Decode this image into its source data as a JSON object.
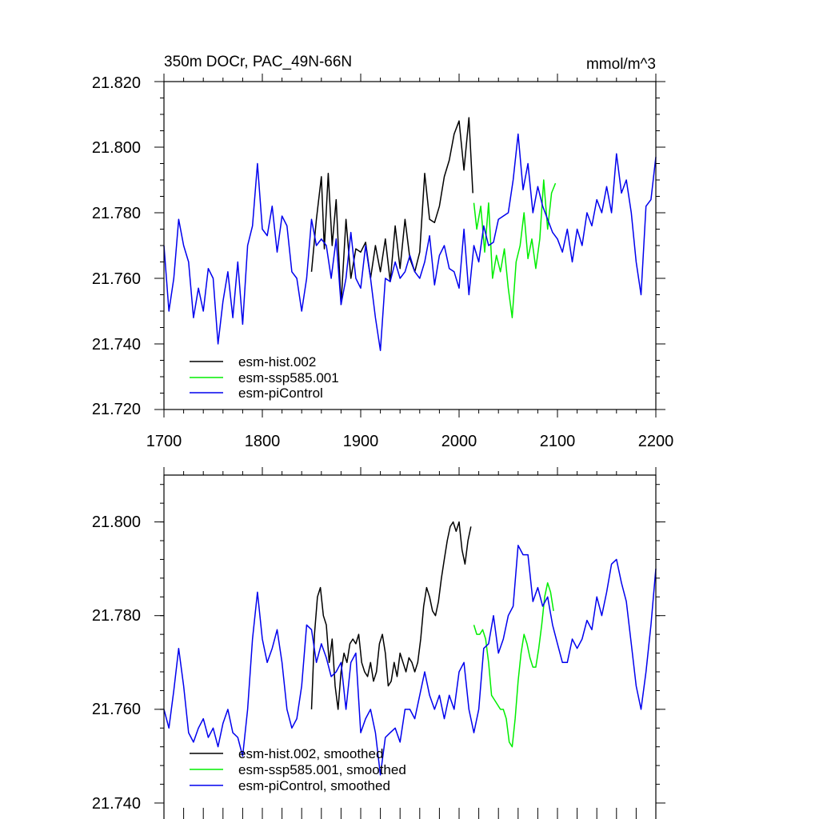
{
  "colors": {
    "hist": "#000000",
    "ssp": "#00ee00",
    "pi": "#0000ee",
    "axis": "#000000",
    "bg": "#ffffff"
  },
  "chart_data": [
    {
      "type": "line",
      "panel": "top",
      "title_left": "350m DOCr, PAC_49N-66N",
      "title_right": "mmol/m^3",
      "xlim": [
        1700,
        2200
      ],
      "ylim": [
        21.72,
        21.82
      ],
      "xticks": [
        1700,
        1800,
        1900,
        2000,
        2100,
        2200
      ],
      "xtick_labels": [
        "1700",
        "1800",
        "1900",
        "2000",
        "2100",
        "2200"
      ],
      "yticks": [
        21.72,
        21.74,
        21.76,
        21.78,
        21.8,
        21.82
      ],
      "ytick_labels": [
        "21.720",
        "21.740",
        "21.760",
        "21.780",
        "21.800",
        "21.820"
      ],
      "legend_position": "lower-left",
      "series": [
        {
          "name": "esm-hist.002",
          "color": "#000000",
          "x": [
            1850,
            1855,
            1860,
            1863,
            1867,
            1871,
            1875,
            1880,
            1885,
            1890,
            1895,
            1900,
            1905,
            1910,
            1915,
            1920,
            1925,
            1930,
            1935,
            1940,
            1945,
            1950,
            1955,
            1960,
            1965,
            1970,
            1975,
            1980,
            1985,
            1990,
            1995,
            2000,
            2005,
            2010,
            2014
          ],
          "y": [
            21.762,
            21.778,
            21.791,
            21.769,
            21.792,
            21.77,
            21.784,
            21.752,
            21.778,
            21.76,
            21.769,
            21.768,
            21.771,
            21.76,
            21.77,
            21.762,
            21.772,
            21.759,
            21.776,
            21.763,
            21.778,
            21.766,
            21.762,
            21.768,
            21.792,
            21.778,
            21.777,
            21.782,
            21.791,
            21.796,
            21.804,
            21.808,
            21.793,
            21.809,
            21.786
          ]
        },
        {
          "name": "esm-ssp585.001",
          "color": "#00ee00",
          "x": [
            2015,
            2018,
            2022,
            2026,
            2030,
            2034,
            2038,
            2042,
            2046,
            2050,
            2054,
            2058,
            2062,
            2066,
            2070,
            2074,
            2078,
            2082,
            2086,
            2090,
            2094,
            2098
          ],
          "y": [
            21.783,
            21.775,
            21.782,
            21.768,
            21.783,
            21.76,
            21.767,
            21.762,
            21.769,
            21.757,
            21.748,
            21.765,
            21.77,
            21.78,
            21.766,
            21.772,
            21.763,
            21.772,
            21.79,
            21.775,
            21.786,
            21.789
          ]
        },
        {
          "name": "esm-piControl",
          "color": "#0000ee",
          "x": [
            1700,
            1705,
            1710,
            1715,
            1720,
            1725,
            1730,
            1735,
            1740,
            1745,
            1750,
            1755,
            1760,
            1765,
            1770,
            1775,
            1780,
            1785,
            1790,
            1795,
            1800,
            1805,
            1810,
            1815,
            1820,
            1825,
            1830,
            1835,
            1840,
            1845,
            1850,
            1855,
            1860,
            1865,
            1870,
            1875,
            1880,
            1885,
            1890,
            1895,
            1900,
            1905,
            1910,
            1915,
            1920,
            1925,
            1930,
            1935,
            1940,
            1945,
            1950,
            1955,
            1960,
            1965,
            1970,
            1975,
            1980,
            1985,
            1990,
            1995,
            2000,
            2005,
            2010,
            2015,
            2020,
            2025,
            2030,
            2035,
            2040,
            2045,
            2050,
            2055,
            2060,
            2065,
            2070,
            2075,
            2080,
            2085,
            2090,
            2095,
            2100,
            2105,
            2110,
            2115,
            2120,
            2125,
            2130,
            2135,
            2140,
            2145,
            2150,
            2155,
            2160,
            2165,
            2170,
            2175,
            2180,
            2185,
            2190,
            2195,
            2200
          ],
          "y": [
            21.77,
            21.75,
            21.76,
            21.778,
            21.77,
            21.765,
            21.748,
            21.757,
            21.75,
            21.763,
            21.76,
            21.74,
            21.753,
            21.762,
            21.748,
            21.765,
            21.746,
            21.77,
            21.776,
            21.795,
            21.775,
            21.773,
            21.782,
            21.768,
            21.779,
            21.776,
            21.762,
            21.76,
            21.75,
            21.76,
            21.778,
            21.77,
            21.772,
            21.77,
            21.76,
            21.772,
            21.752,
            21.76,
            21.774,
            21.76,
            21.757,
            21.77,
            21.76,
            21.748,
            21.738,
            21.76,
            21.759,
            21.765,
            21.76,
            21.762,
            21.767,
            21.762,
            21.76,
            21.765,
            21.773,
            21.758,
            21.767,
            21.77,
            21.763,
            21.762,
            21.757,
            21.775,
            21.755,
            21.77,
            21.765,
            21.776,
            21.77,
            21.771,
            21.778,
            21.779,
            21.78,
            21.79,
            21.804,
            21.787,
            21.795,
            21.78,
            21.788,
            21.782,
            21.778,
            21.774,
            21.772,
            21.768,
            21.775,
            21.765,
            21.775,
            21.77,
            21.78,
            21.776,
            21.784,
            21.78,
            21.788,
            21.78,
            21.798,
            21.786,
            21.79,
            21.78,
            21.765,
            21.755,
            21.782,
            21.784,
            21.797
          ]
        }
      ],
      "legend": [
        "esm-hist.002",
        "esm-ssp585.001",
        "esm-piControl"
      ]
    },
    {
      "type": "line",
      "panel": "bottom",
      "xlim": [
        1700,
        2200
      ],
      "ylim": [
        21.74,
        21.81
      ],
      "xticks": [
        1700,
        1800,
        1900,
        2000,
        2100,
        2200
      ],
      "yticks": [
        21.74,
        21.76,
        21.78,
        21.8
      ],
      "ytick_labels": [
        "21.740",
        "21.760",
        "21.780",
        "21.800"
      ],
      "legend_position": "lower-left",
      "series": [
        {
          "name": "esm-hist.002, smoothed",
          "color": "#000000",
          "x": [
            1850,
            1853,
            1856,
            1859,
            1862,
            1865,
            1868,
            1871,
            1874,
            1877,
            1880,
            1883,
            1886,
            1889,
            1892,
            1895,
            1898,
            1901,
            1904,
            1907,
            1910,
            1913,
            1916,
            1919,
            1922,
            1925,
            1928,
            1931,
            1934,
            1937,
            1940,
            1943,
            1946,
            1949,
            1952,
            1955,
            1958,
            1961,
            1964,
            1967,
            1970,
            1973,
            1976,
            1979,
            1982,
            1985,
            1988,
            1991,
            1994,
            1997,
            2000,
            2003,
            2006,
            2009,
            2012
          ],
          "y": [
            21.76,
            21.776,
            21.784,
            21.786,
            21.78,
            21.778,
            21.77,
            21.775,
            21.765,
            21.76,
            21.768,
            21.772,
            21.77,
            21.774,
            21.775,
            21.774,
            21.776,
            21.77,
            21.768,
            21.767,
            21.77,
            21.766,
            21.768,
            21.774,
            21.776,
            21.772,
            21.765,
            21.766,
            21.77,
            21.767,
            21.772,
            21.77,
            21.768,
            21.771,
            21.77,
            21.768,
            21.77,
            21.775,
            21.782,
            21.786,
            21.784,
            21.781,
            21.78,
            21.783,
            21.788,
            21.792,
            21.796,
            21.799,
            21.8,
            21.798,
            21.8,
            21.794,
            21.791,
            21.796,
            21.799
          ]
        },
        {
          "name": "esm-ssp585.001, smoothed",
          "color": "#00ee00",
          "x": [
            2015,
            2018,
            2021,
            2024,
            2027,
            2030,
            2033,
            2036,
            2039,
            2042,
            2045,
            2048,
            2051,
            2054,
            2057,
            2060,
            2063,
            2066,
            2069,
            2072,
            2075,
            2078,
            2081,
            2084,
            2087,
            2090,
            2093,
            2096
          ],
          "y": [
            21.778,
            21.776,
            21.776,
            21.777,
            21.775,
            21.77,
            21.763,
            21.762,
            21.761,
            21.76,
            21.76,
            21.758,
            21.753,
            21.752,
            21.758,
            21.766,
            21.772,
            21.776,
            21.774,
            21.771,
            21.769,
            21.769,
            21.773,
            21.778,
            21.784,
            21.787,
            21.785,
            21.781
          ]
        },
        {
          "name": "esm-piControl, smoothed",
          "color": "#0000ee",
          "x": [
            1700,
            1705,
            1710,
            1715,
            1720,
            1725,
            1730,
            1735,
            1740,
            1745,
            1750,
            1755,
            1760,
            1765,
            1770,
            1775,
            1780,
            1785,
            1790,
            1795,
            1800,
            1805,
            1810,
            1815,
            1820,
            1825,
            1830,
            1835,
            1840,
            1845,
            1850,
            1855,
            1860,
            1865,
            1870,
            1875,
            1880,
            1885,
            1890,
            1895,
            1900,
            1905,
            1910,
            1915,
            1920,
            1925,
            1930,
            1935,
            1940,
            1945,
            1950,
            1955,
            1960,
            1965,
            1970,
            1975,
            1980,
            1985,
            1990,
            1995,
            2000,
            2005,
            2010,
            2015,
            2020,
            2025,
            2030,
            2035,
            2040,
            2045,
            2050,
            2055,
            2060,
            2065,
            2070,
            2075,
            2080,
            2085,
            2090,
            2095,
            2100,
            2105,
            2110,
            2115,
            2120,
            2125,
            2130,
            2135,
            2140,
            2145,
            2150,
            2155,
            2160,
            2165,
            2170,
            2175,
            2180,
            2185,
            2190,
            2195,
            2200
          ],
          "y": [
            21.76,
            21.756,
            21.764,
            21.773,
            21.765,
            21.755,
            21.753,
            21.756,
            21.758,
            21.754,
            21.756,
            21.752,
            21.757,
            21.76,
            21.755,
            21.754,
            21.75,
            21.76,
            21.775,
            21.785,
            21.775,
            21.77,
            21.773,
            21.777,
            21.77,
            21.76,
            21.756,
            21.758,
            21.765,
            21.778,
            21.777,
            21.77,
            21.774,
            21.771,
            21.767,
            21.768,
            21.77,
            21.76,
            21.77,
            21.772,
            21.755,
            21.758,
            21.76,
            21.755,
            21.746,
            21.754,
            21.755,
            21.756,
            21.753,
            21.76,
            21.76,
            21.758,
            21.763,
            21.768,
            21.763,
            21.76,
            21.763,
            21.758,
            21.763,
            21.76,
            21.768,
            21.77,
            21.76,
            21.755,
            21.76,
            21.773,
            21.774,
            21.78,
            21.772,
            21.775,
            21.78,
            21.782,
            21.795,
            21.793,
            21.793,
            21.783,
            21.786,
            21.782,
            21.784,
            21.778,
            21.774,
            21.77,
            21.77,
            21.775,
            21.773,
            21.775,
            21.779,
            21.777,
            21.784,
            21.78,
            21.785,
            21.791,
            21.792,
            21.787,
            21.783,
            21.774,
            21.765,
            21.76,
            21.768,
            21.778,
            21.79
          ]
        }
      ],
      "legend": [
        "esm-hist.002, smoothed",
        "esm-ssp585.001, smoothed",
        "esm-piControl, smoothed"
      ]
    }
  ]
}
